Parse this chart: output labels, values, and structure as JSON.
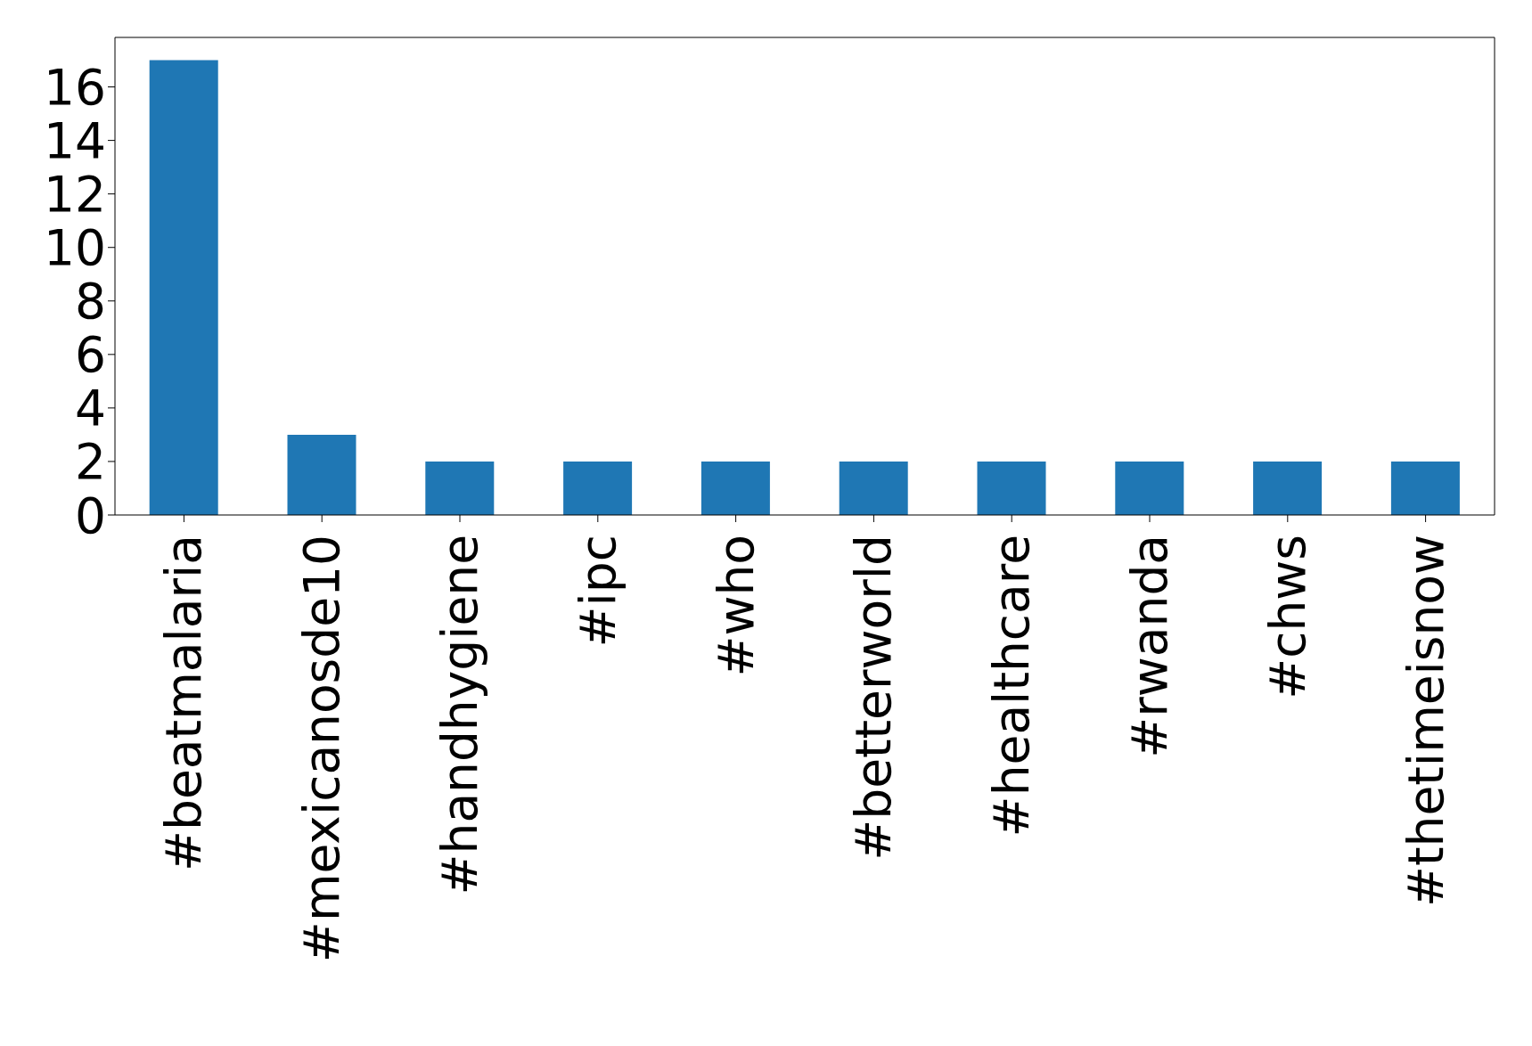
{
  "chart_data": {
    "type": "bar",
    "categories": [
      "#beatmalaria",
      "#mexicanosde10",
      "#handhygiene",
      "#ipc",
      "#who",
      "#betterworld",
      "#healthcare",
      "#rwanda",
      "#chws",
      "#thetimeisnow"
    ],
    "values": [
      17,
      3,
      2,
      2,
      2,
      2,
      2,
      2,
      2,
      2
    ],
    "color": "#1f77b4",
    "ylim": [
      0,
      17.85
    ],
    "yticks": [
      0,
      2,
      4,
      6,
      8,
      10,
      12,
      14,
      16
    ],
    "grid": false,
    "legend": false
  }
}
